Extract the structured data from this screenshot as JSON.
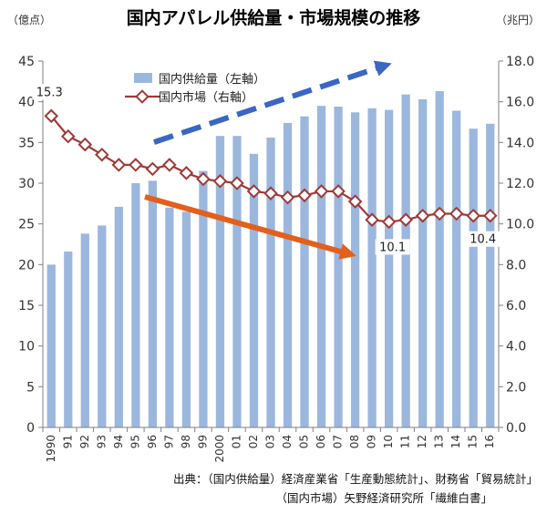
{
  "chart_data": {
    "type": "bar",
    "title": "国内アパレル供給量・市場規模の推移",
    "left_unit": "（億点）",
    "right_unit": "（兆円）",
    "categories": [
      "1990",
      "91",
      "92",
      "93",
      "94",
      "95",
      "96",
      "97",
      "98",
      "99",
      "2000",
      "01",
      "02",
      "03",
      "04",
      "05",
      "06",
      "07",
      "08",
      "09",
      "10",
      "11",
      "12",
      "13",
      "14",
      "15",
      "16"
    ],
    "ylim_left": [
      0,
      45
    ],
    "ylim_right": [
      0,
      18
    ],
    "left_ticks": [
      "0",
      "5",
      "10",
      "15",
      "20",
      "25",
      "30",
      "35",
      "40",
      "45"
    ],
    "right_ticks": [
      "0.0",
      "2.0",
      "4.0",
      "6.0",
      "8.0",
      "10.0",
      "12.0",
      "14.0",
      "16.0",
      "18.0"
    ],
    "grid": false,
    "legend_position": "top-left",
    "series": [
      {
        "name": "国内供給量（左軸）",
        "type": "bar",
        "axis": "left",
        "color": "#9bb7de",
        "values": [
          20.0,
          21.6,
          23.8,
          24.8,
          27.1,
          30.0,
          30.3,
          27.0,
          26.5,
          31.5,
          35.8,
          35.8,
          33.6,
          35.6,
          37.4,
          38.2,
          39.5,
          39.4,
          38.7,
          39.2,
          39.0,
          40.9,
          40.3,
          41.3,
          38.9,
          36.7,
          37.3
        ]
      },
      {
        "name": "国内市場（右軸）",
        "type": "line",
        "axis": "right",
        "color": "#9e3a38",
        "values": [
          15.3,
          14.3,
          13.9,
          13.4,
          12.9,
          12.9,
          12.7,
          12.9,
          12.5,
          12.2,
          12.1,
          12.0,
          11.6,
          11.5,
          11.3,
          11.4,
          11.6,
          11.6,
          11.1,
          10.2,
          10.1,
          10.2,
          10.4,
          10.5,
          10.5,
          10.4,
          10.4
        ]
      }
    ],
    "data_labels": [
      {
        "index": 0,
        "series": 1,
        "text": "15.3"
      },
      {
        "index": 20,
        "series": 1,
        "text": "10.1"
      },
      {
        "index": 26,
        "series": 1,
        "text": "10.4"
      }
    ],
    "annotations": [
      {
        "kind": "dashed-arrow-up",
        "color": "#3a66c4",
        "meaning": "supply increasing"
      },
      {
        "kind": "arrow-down",
        "color": "#e2601b",
        "meaning": "market decreasing"
      }
    ]
  },
  "source": {
    "line1": "出典：（国内供給量）経済産業省「生産動態統計」、財務省「貿易統計」",
    "line2": "（国内市場）矢野経済研究所「繊維白書」"
  }
}
